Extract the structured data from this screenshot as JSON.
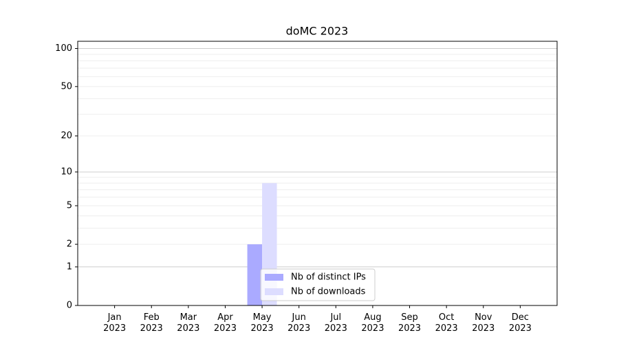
{
  "chart_data": {
    "type": "bar",
    "title": "doMC 2023",
    "categories": [
      "Jan 2023",
      "Feb 2023",
      "Mar 2023",
      "Apr 2023",
      "May 2023",
      "Jun 2023",
      "Jul 2023",
      "Aug 2023",
      "Sep 2023",
      "Oct 2023",
      "Nov 2023",
      "Dec 2023"
    ],
    "series": [
      {
        "name": "Nb of distinct IPs",
        "color": "#aaaaff",
        "values": [
          0,
          0,
          0,
          0,
          2,
          0,
          0,
          0,
          0,
          0,
          0,
          0
        ]
      },
      {
        "name": "Nb of downloads",
        "color": "#ddddff",
        "values": [
          0,
          0,
          0,
          0,
          8,
          0,
          0,
          0,
          0,
          0,
          0,
          0
        ]
      }
    ],
    "yscale": "log1p",
    "ylim": [
      0,
      114
    ],
    "yticks": [
      0,
      1,
      2,
      5,
      10,
      20,
      50,
      100
    ],
    "y_minor_ticks": [
      3,
      4,
      6,
      7,
      8,
      9,
      30,
      40,
      60,
      70,
      80,
      90
    ],
    "grid": true,
    "legend": "lower center"
  }
}
